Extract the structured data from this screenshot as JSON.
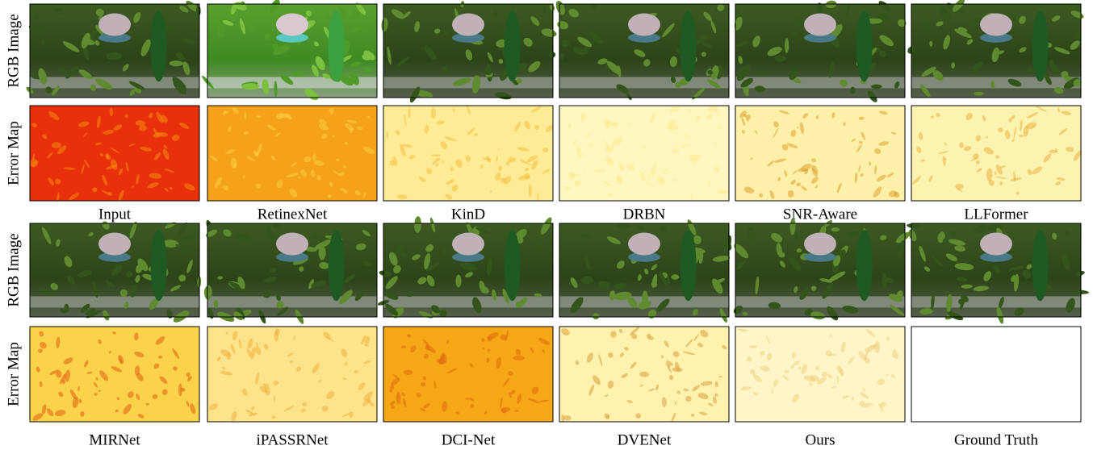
{
  "top_group": {
    "row_labels": [
      "RGB Image",
      "Error Map"
    ],
    "methods": [
      "Input",
      "RetinexNet",
      "KinD",
      "DRBN",
      "SNR-Aware",
      "LLFormer"
    ]
  },
  "bottom_group": {
    "row_labels": [
      "RGB Image",
      "Error Map"
    ],
    "methods": [
      "MIRNet",
      "iPASSRNet",
      "DCI-Net",
      "DVENet",
      "Ours",
      "Ground Truth"
    ]
  }
}
